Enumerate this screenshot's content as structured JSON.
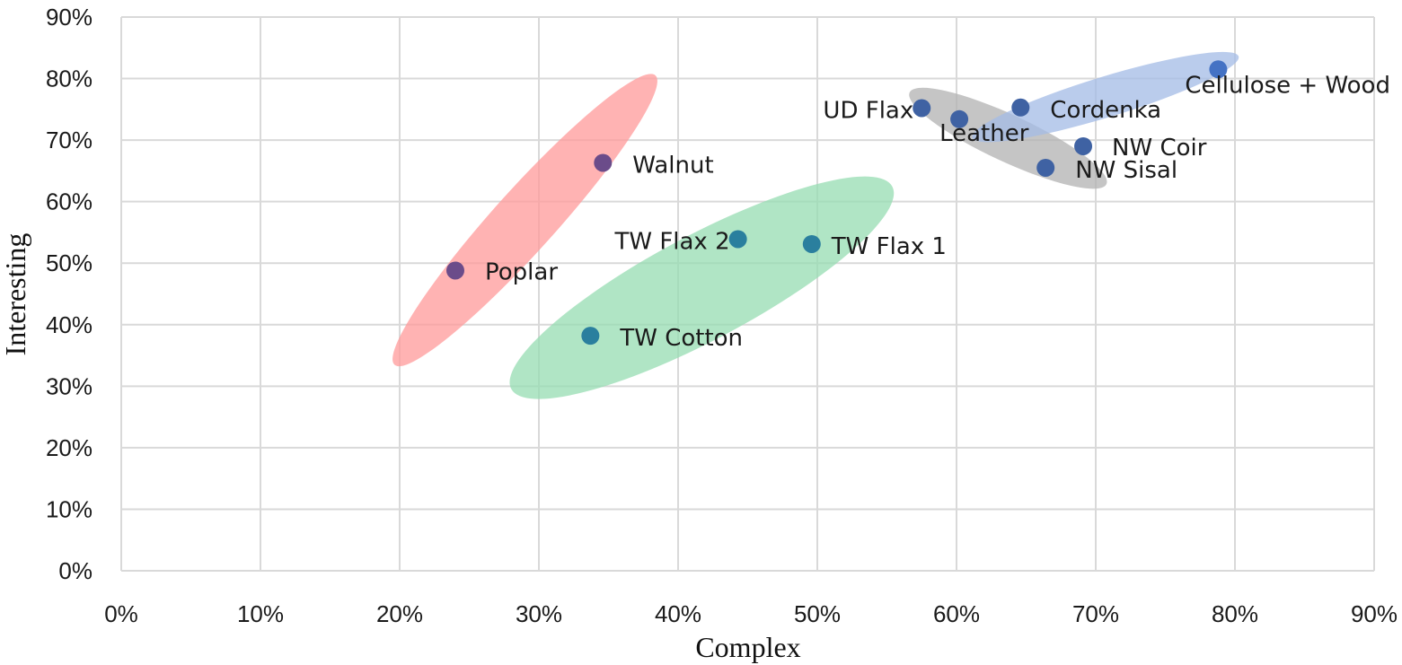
{
  "chart_data": {
    "type": "scatter",
    "xlabel": "Complex",
    "ylabel": "Interesting",
    "xlim": [
      0,
      90
    ],
    "ylim": [
      0,
      90
    ],
    "xticks": [
      "0%",
      "10%",
      "20%",
      "30%",
      "40%",
      "50%",
      "60%",
      "70%",
      "80%",
      "90%"
    ],
    "yticks": [
      "0%",
      "10%",
      "20%",
      "30%",
      "40%",
      "50%",
      "60%",
      "70%",
      "80%",
      "90%"
    ],
    "grid": true,
    "legend": "none",
    "points": [
      {
        "label": "Poplar",
        "x": 24.0,
        "y": 48.8,
        "color": "#6b4c8a"
      },
      {
        "label": "Walnut",
        "x": 34.6,
        "y": 66.3,
        "color": "#6b4c8a"
      },
      {
        "label": "TW Cotton",
        "x": 33.7,
        "y": 38.2,
        "color": "#2a7f9e"
      },
      {
        "label": "TW Flax 2",
        "x": 44.3,
        "y": 53.9,
        "color": "#2a7f9e"
      },
      {
        "label": "TW Flax 1",
        "x": 49.6,
        "y": 53.1,
        "color": "#2a7f9e"
      },
      {
        "label": "UD Flax",
        "x": 57.5,
        "y": 75.2,
        "color": "#3f62a3"
      },
      {
        "label": "Leather",
        "x": 60.2,
        "y": 73.4,
        "color": "#3f62a3"
      },
      {
        "label": "Cordenka",
        "x": 64.6,
        "y": 75.3,
        "color": "#3f62a3"
      },
      {
        "label": "NW Coir",
        "x": 69.1,
        "y": 69.0,
        "color": "#3f62a3"
      },
      {
        "label": "NW Sisal",
        "x": 66.4,
        "y": 65.5,
        "color": "#3f62a3"
      },
      {
        "label": "Cellulose + Wood",
        "x": 78.8,
        "y": 81.5,
        "color": "#4472c4"
      }
    ],
    "groups": [
      {
        "color": "#ff9a9a",
        "cx": 29.0,
        "cy": 57.0,
        "rx": 14.0,
        "ry": 5.0,
        "angle": -48
      },
      {
        "color": "#95dcb1",
        "cx": 41.7,
        "cy": 46.0,
        "rx": 15.5,
        "ry": 8.5,
        "angle": -28
      },
      {
        "color": "#b1b1b1",
        "cx": 63.7,
        "cy": 70.3,
        "rx": 7.8,
        "ry": 3.8,
        "angle": 25
      },
      {
        "color": "#a3bbe6",
        "cx": 70.7,
        "cy": 77.0,
        "rx": 10.0,
        "ry": 3.3,
        "angle": -17
      }
    ]
  }
}
